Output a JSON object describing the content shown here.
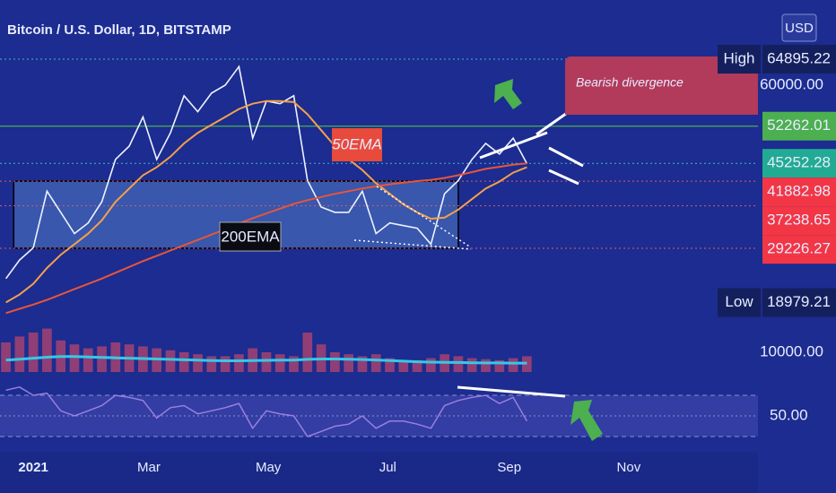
{
  "title": "Bitcoin / U.S. Dollar, 1D, BITSTAMP",
  "currency": "USD",
  "chart_data": {
    "type": "line",
    "x": [
      -14,
      -7,
      0,
      7,
      14,
      21,
      28,
      35,
      42,
      49,
      56,
      63,
      70,
      77,
      84,
      91,
      98,
      105,
      112,
      119,
      126,
      133,
      140,
      147,
      154,
      161,
      168,
      175,
      182,
      189,
      196,
      203,
      210,
      217,
      224,
      231,
      238,
      245,
      252
    ],
    "xlim": [
      -17,
      370
    ],
    "xticks": [
      {
        "value": 0,
        "label": "2021"
      },
      {
        "value": 59,
        "label": "Mar"
      },
      {
        "value": 120,
        "label": "May"
      },
      {
        "value": 181,
        "label": "Jul"
      },
      {
        "value": 243,
        "label": "Sep"
      },
      {
        "value": 304,
        "label": "Nov"
      }
    ],
    "ylim": [
      11800,
      69300
    ],
    "yticks": [
      {
        "value": 60000,
        "label": "60000.00"
      }
    ],
    "series": [
      {
        "color": "#eef2ff",
        "values": [
          23500,
          27000,
          29300,
          40000,
          36000,
          32000,
          34000,
          38000,
          46000,
          48500,
          54000,
          46000,
          51000,
          58000,
          55000,
          58500,
          60000,
          63500,
          50000,
          57000,
          56500,
          58000,
          42000,
          37000,
          36000,
          36000,
          40000,
          32000,
          34000,
          33500,
          33000,
          30000,
          39500,
          42000,
          46000,
          49000,
          47000,
          50000,
          45200
        ]
      },
      {
        "name": "50EMA",
        "color": "#f5a04a",
        "values": [
          19000,
          20500,
          22500,
          25500,
          28000,
          30000,
          32000,
          34500,
          38000,
          40500,
          43000,
          44500,
          46500,
          49000,
          51000,
          52500,
          54000,
          55500,
          56500,
          57000,
          57000,
          56800,
          54500,
          51500,
          48500,
          46000,
          44000,
          41500,
          39500,
          37500,
          36000,
          34800,
          35000,
          36500,
          38500,
          40500,
          41800,
          43500,
          44500
        ]
      },
      {
        "name": "200EMA",
        "color": "#e8553a",
        "values": [
          17000,
          17800,
          18600,
          19500,
          20500,
          21500,
          22500,
          23500,
          24600,
          25700,
          26800,
          27800,
          28800,
          29800,
          30800,
          31800,
          32800,
          33900,
          34900,
          35800,
          36700,
          37600,
          38300,
          38900,
          39500,
          40000,
          40500,
          40900,
          41300,
          41600,
          41900,
          42100,
          42500,
          43000,
          43600,
          44200,
          44600,
          45000,
          45252
        ]
      }
    ],
    "price_labels": [
      {
        "label": "High",
        "value": 64895.22,
        "color": "#14205e"
      },
      {
        "value": 52262.01,
        "color": "#4caf50"
      },
      {
        "value": 45252.28,
        "color": "#22ab94"
      },
      {
        "value": 41882.98,
        "color": "#f23645"
      },
      {
        "value": 37238.65,
        "color": "#f23645"
      },
      {
        "value": 29226.27,
        "color": "#f23645"
      },
      {
        "label": "Low",
        "value": 18979.21,
        "color": "#14205e"
      }
    ],
    "annotations": [
      {
        "text": "Bearish divergence"
      }
    ],
    "volume": {
      "ylim": [
        0,
        25000
      ],
      "yticks": [
        {
          "value": 10000,
          "label": "10000.00"
        }
      ],
      "color": "#c0476a",
      "values": [
        15000,
        18000,
        20000,
        22000,
        16000,
        14000,
        12000,
        13000,
        15000,
        14000,
        13000,
        12000,
        11000,
        10000,
        9000,
        8000,
        8000,
        9000,
        12000,
        10000,
        9000,
        8000,
        20000,
        14000,
        10000,
        9000,
        8000,
        9000,
        7000,
        6000,
        6000,
        7000,
        9000,
        8000,
        7000,
        6500,
        6000,
        7000,
        8000
      ],
      "ma_color": "#35c9e6",
      "ma": [
        6000,
        6500,
        7000,
        7500,
        7800,
        7800,
        7600,
        7400,
        7200,
        7000,
        6800,
        6600,
        6400,
        6200,
        6000,
        5800,
        5700,
        5700,
        5800,
        5900,
        6000,
        6000,
        6400,
        6600,
        6600,
        6500,
        6300,
        6100,
        5800,
        5500,
        5200,
        5000,
        4900,
        4800,
        4700,
        4600,
        4600,
        4500,
        4500
      ]
    },
    "rsi": {
      "ylim": [
        10,
        90
      ],
      "yticks": [
        {
          "value": 50,
          "label": "50.00"
        }
      ],
      "bands": [
        30,
        70
      ],
      "color": "#9a7fe0",
      "values": [
        75,
        78,
        70,
        72,
        55,
        50,
        55,
        60,
        70,
        68,
        65,
        48,
        58,
        60,
        52,
        55,
        58,
        62,
        38,
        55,
        52,
        50,
        30,
        35,
        40,
        42,
        50,
        38,
        45,
        45,
        42,
        38,
        60,
        65,
        68,
        70,
        62,
        68,
        45
      ]
    }
  }
}
